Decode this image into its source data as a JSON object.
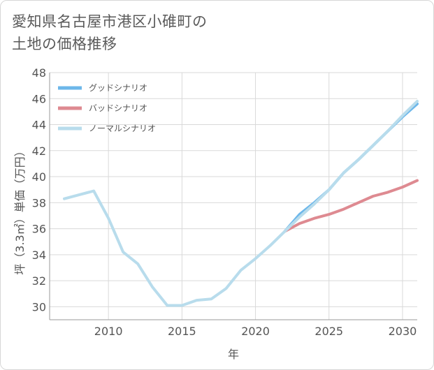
{
  "title_line1": "愛知県名古屋市港区小碓町の",
  "title_line2": "土地の価格推移",
  "colors": {
    "good": "#6db7ea",
    "bad": "#de8a91",
    "normal": "#b8dcec",
    "grid": "#d9d9d9",
    "axis": "#9a9a9a"
  },
  "chart_data": {
    "type": "line",
    "title": "愛知県名古屋市港区小碓町の土地の価格推移",
    "xlabel": "年",
    "ylabel": "坪（3.3㎡）単価（万円）",
    "xlim": [
      2006,
      2031
    ],
    "ylim": [
      29,
      48
    ],
    "xticks": [
      2010,
      2015,
      2020,
      2025,
      2030
    ],
    "yticks": [
      30,
      32,
      34,
      36,
      38,
      40,
      42,
      44,
      46,
      48
    ],
    "legend_position": "top-left",
    "series": [
      {
        "name": "グッドシナリオ",
        "color": "#6db7ea",
        "x": [
          2022,
          2023,
          2024,
          2025,
          2026,
          2027,
          2028,
          2029,
          2030,
          2031
        ],
        "y": [
          35.8,
          37.1,
          38.0,
          39.0,
          40.3,
          41.3,
          42.4,
          43.5,
          44.6,
          45.6
        ]
      },
      {
        "name": "バッドシナリオ",
        "color": "#de8a91",
        "x": [
          2022,
          2023,
          2024,
          2025,
          2026,
          2027,
          2028,
          2029,
          2030,
          2031
        ],
        "y": [
          35.8,
          36.4,
          36.8,
          37.1,
          37.5,
          38.0,
          38.5,
          38.8,
          39.2,
          39.7
        ]
      },
      {
        "name": "ノーマルシナリオ",
        "color": "#b8dcec",
        "x": [
          2007,
          2008,
          2009,
          2010,
          2011,
          2012,
          2013,
          2014,
          2015,
          2016,
          2017,
          2018,
          2019,
          2020,
          2021,
          2022,
          2023,
          2024,
          2025,
          2026,
          2027,
          2028,
          2029,
          2030,
          2031
        ],
        "y": [
          38.3,
          38.6,
          38.9,
          36.8,
          34.2,
          33.3,
          31.5,
          30.1,
          30.1,
          30.5,
          30.6,
          31.4,
          32.8,
          33.7,
          34.7,
          35.8,
          36.9,
          37.9,
          39.0,
          40.3,
          41.3,
          42.4,
          43.5,
          44.7,
          45.8
        ]
      }
    ]
  }
}
